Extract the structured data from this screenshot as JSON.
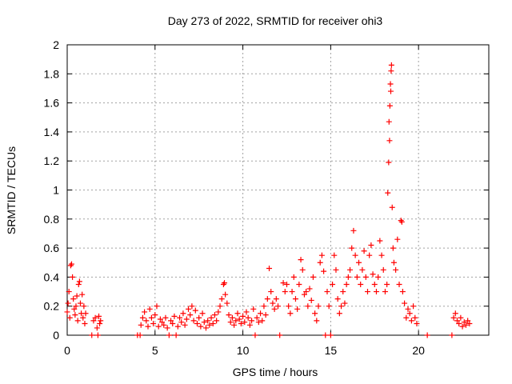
{
  "chart_data": {
    "type": "scatter",
    "title": "Day 273 of 2022, SRMTID for receiver ohi3",
    "xlabel": "GPS time / hours",
    "ylabel": "SRMTID / TECUs",
    "xlim": [
      0,
      24
    ],
    "ylim": [
      0,
      2
    ],
    "grid": true,
    "marker": "+",
    "color": "#ff0000",
    "x_ticks": [
      0,
      5,
      10,
      15,
      20
    ],
    "x_tick_labels": [
      "0",
      "5",
      "10",
      "15",
      "20"
    ],
    "y_ticks": [
      0,
      0.2,
      0.4,
      0.6,
      0.8,
      1,
      1.2,
      1.4,
      1.6,
      1.8,
      2
    ],
    "y_tick_labels": [
      "0",
      "0.2",
      "0.4",
      "0.6",
      "0.8",
      "1",
      "1.2",
      "1.4",
      "1.6",
      "1.8",
      "2"
    ],
    "series": [
      {
        "name": "SRMTID",
        "points": [
          [
            0.0,
            0.16
          ],
          [
            0.05,
            0.22
          ],
          [
            0.1,
            0.3
          ],
          [
            0.15,
            0.12
          ],
          [
            0.2,
            0.48
          ],
          [
            0.25,
            0.49
          ],
          [
            0.3,
            0.4
          ],
          [
            0.35,
            0.25
          ],
          [
            0.4,
            0.18
          ],
          [
            0.45,
            0.14
          ],
          [
            0.5,
            0.2
          ],
          [
            0.55,
            0.27
          ],
          [
            0.6,
            0.1
          ],
          [
            0.65,
            0.35
          ],
          [
            0.7,
            0.37
          ],
          [
            0.75,
            0.22
          ],
          [
            0.8,
            0.15
          ],
          [
            0.85,
            0.28
          ],
          [
            0.9,
            0.12
          ],
          [
            0.95,
            0.2
          ],
          [
            1.0,
            0.08
          ],
          [
            1.05,
            0.15
          ],
          [
            1.4,
            0.0
          ],
          [
            1.5,
            0.1
          ],
          [
            1.6,
            0.12
          ],
          [
            1.7,
            0.05
          ],
          [
            1.75,
            0.0
          ],
          [
            1.8,
            0.13
          ],
          [
            1.85,
            0.08
          ],
          [
            1.9,
            0.1
          ],
          [
            4.0,
            0.0
          ],
          [
            4.15,
            0.0
          ],
          [
            4.2,
            0.07
          ],
          [
            4.3,
            0.12
          ],
          [
            4.4,
            0.16
          ],
          [
            4.5,
            0.1
          ],
          [
            4.6,
            0.06
          ],
          [
            4.7,
            0.18
          ],
          [
            4.8,
            0.12
          ],
          [
            4.9,
            0.08
          ],
          [
            5.0,
            0.14
          ],
          [
            5.1,
            0.2
          ],
          [
            5.2,
            0.06
          ],
          [
            5.3,
            0.11
          ],
          [
            5.4,
            0.09
          ],
          [
            5.5,
            0.07
          ],
          [
            5.6,
            0.12
          ],
          [
            5.7,
            0.05
          ],
          [
            5.8,
            0.0
          ],
          [
            5.9,
            0.1
          ],
          [
            6.0,
            0.08
          ],
          [
            6.1,
            0.13
          ],
          [
            6.2,
            0.0
          ],
          [
            6.3,
            0.06
          ],
          [
            6.4,
            0.12
          ],
          [
            6.5,
            0.09
          ],
          [
            6.6,
            0.15
          ],
          [
            6.7,
            0.07
          ],
          [
            6.8,
            0.11
          ],
          [
            6.9,
            0.18
          ],
          [
            7.0,
            0.14
          ],
          [
            7.1,
            0.2
          ],
          [
            7.2,
            0.1
          ],
          [
            7.3,
            0.17
          ],
          [
            7.4,
            0.08
          ],
          [
            7.5,
            0.12
          ],
          [
            7.6,
            0.06
          ],
          [
            7.7,
            0.15
          ],
          [
            7.8,
            0.09
          ],
          [
            7.9,
            0.05
          ],
          [
            8.0,
            0.1
          ],
          [
            8.1,
            0.07
          ],
          [
            8.2,
            0.12
          ],
          [
            8.3,
            0.08
          ],
          [
            8.4,
            0.14
          ],
          [
            8.5,
            0.1
          ],
          [
            8.6,
            0.16
          ],
          [
            8.7,
            0.2
          ],
          [
            8.8,
            0.25
          ],
          [
            8.9,
            0.35
          ],
          [
            8.95,
            0.36
          ],
          [
            9.0,
            0.28
          ],
          [
            9.1,
            0.22
          ],
          [
            9.2,
            0.14
          ],
          [
            9.3,
            0.09
          ],
          [
            9.4,
            0.12
          ],
          [
            9.5,
            0.07
          ],
          [
            9.6,
            0.1
          ],
          [
            9.7,
            0.15
          ],
          [
            9.8,
            0.11
          ],
          [
            9.9,
            0.08
          ],
          [
            10.0,
            0.13
          ],
          [
            10.1,
            0.09
          ],
          [
            10.2,
            0.16
          ],
          [
            10.3,
            0.12
          ],
          [
            10.4,
            0.07
          ],
          [
            10.5,
            0.1
          ],
          [
            10.6,
            0.18
          ],
          [
            10.7,
            0.0
          ],
          [
            10.8,
            0.12
          ],
          [
            10.9,
            0.09
          ],
          [
            11.0,
            0.15
          ],
          [
            11.1,
            0.1
          ],
          [
            11.2,
            0.2
          ],
          [
            11.3,
            0.14
          ],
          [
            11.4,
            0.25
          ],
          [
            11.5,
            0.46
          ],
          [
            11.6,
            0.3
          ],
          [
            11.7,
            0.22
          ],
          [
            11.8,
            0.18
          ],
          [
            11.9,
            0.25
          ],
          [
            12.0,
            0.2
          ],
          [
            12.1,
            0.0
          ],
          [
            12.3,
            0.36
          ],
          [
            12.4,
            0.3
          ],
          [
            12.5,
            0.35
          ],
          [
            12.6,
            0.2
          ],
          [
            12.7,
            0.15
          ],
          [
            12.8,
            0.3
          ],
          [
            12.9,
            0.4
          ],
          [
            13.0,
            0.25
          ],
          [
            13.1,
            0.18
          ],
          [
            13.2,
            0.35
          ],
          [
            13.3,
            0.52
          ],
          [
            13.4,
            0.45
          ],
          [
            13.5,
            0.28
          ],
          [
            13.6,
            0.3
          ],
          [
            13.7,
            0.2
          ],
          [
            13.8,
            0.32
          ],
          [
            13.9,
            0.24
          ],
          [
            14.0,
            0.4
          ],
          [
            14.1,
            0.15
          ],
          [
            14.2,
            0.1
          ],
          [
            14.3,
            0.2
          ],
          [
            14.4,
            0.5
          ],
          [
            14.5,
            0.55
          ],
          [
            14.6,
            0.44
          ],
          [
            14.7,
            0.0
          ],
          [
            14.8,
            0.3
          ],
          [
            14.9,
            0.2
          ],
          [
            15.0,
            0.0
          ],
          [
            15.1,
            0.35
          ],
          [
            15.2,
            0.55
          ],
          [
            15.3,
            0.45
          ],
          [
            15.4,
            0.25
          ],
          [
            15.5,
            0.15
          ],
          [
            15.6,
            0.2
          ],
          [
            15.7,
            0.3
          ],
          [
            15.8,
            0.22
          ],
          [
            15.9,
            0.35
          ],
          [
            16.0,
            0.4
          ],
          [
            16.1,
            0.45
          ],
          [
            16.2,
            0.6
          ],
          [
            16.3,
            0.72
          ],
          [
            16.4,
            0.55
          ],
          [
            16.5,
            0.4
          ],
          [
            16.6,
            0.5
          ],
          [
            16.7,
            0.35
          ],
          [
            16.8,
            0.45
          ],
          [
            16.9,
            0.58
          ],
          [
            17.0,
            0.4
          ],
          [
            17.1,
            0.3
          ],
          [
            17.2,
            0.55
          ],
          [
            17.3,
            0.62
          ],
          [
            17.4,
            0.42
          ],
          [
            17.5,
            0.35
          ],
          [
            17.6,
            0.3
          ],
          [
            17.7,
            0.4
          ],
          [
            17.8,
            0.65
          ],
          [
            17.9,
            0.55
          ],
          [
            18.0,
            0.45
          ],
          [
            18.1,
            0.3
          ],
          [
            18.2,
            0.35
          ],
          [
            18.25,
            0.98
          ],
          [
            18.3,
            1.19
          ],
          [
            18.32,
            1.47
          ],
          [
            18.35,
            1.34
          ],
          [
            18.37,
            1.58
          ],
          [
            18.4,
            1.73
          ],
          [
            18.42,
            1.68
          ],
          [
            18.44,
            1.82
          ],
          [
            18.46,
            1.86
          ],
          [
            18.5,
            0.88
          ],
          [
            18.55,
            0.6
          ],
          [
            18.6,
            0.5
          ],
          [
            18.7,
            0.45
          ],
          [
            18.8,
            0.66
          ],
          [
            18.9,
            0.35
          ],
          [
            19.0,
            0.79
          ],
          [
            19.05,
            0.78
          ],
          [
            19.1,
            0.3
          ],
          [
            19.2,
            0.22
          ],
          [
            19.3,
            0.12
          ],
          [
            19.4,
            0.18
          ],
          [
            19.5,
            0.15
          ],
          [
            19.6,
            0.1
          ],
          [
            19.7,
            0.2
          ],
          [
            19.8,
            0.12
          ],
          [
            19.9,
            0.08
          ],
          [
            20.5,
            0.0
          ],
          [
            21.9,
            0.0
          ],
          [
            22.0,
            0.12
          ],
          [
            22.1,
            0.15
          ],
          [
            22.2,
            0.1
          ],
          [
            22.3,
            0.08
          ],
          [
            22.4,
            0.12
          ],
          [
            22.5,
            0.06
          ],
          [
            22.6,
            0.09
          ],
          [
            22.7,
            0.07
          ],
          [
            22.8,
            0.1
          ],
          [
            22.9,
            0.08
          ]
        ]
      }
    ]
  }
}
